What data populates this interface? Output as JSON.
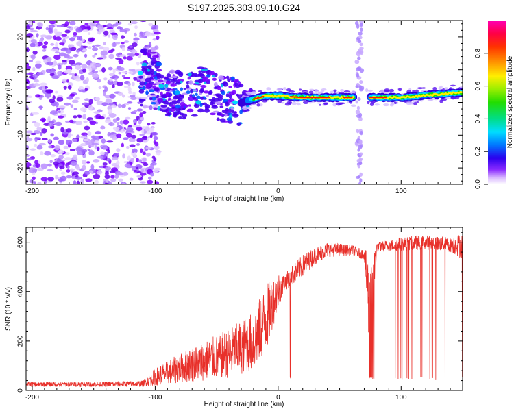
{
  "title": "S197.2025.303.09.10.G24",
  "colors": {
    "snr_line": "#e8302a",
    "colorbar": [
      "#ff00b4",
      "#ff0000",
      "#ff9900",
      "#ffff00",
      "#44dd00",
      "#00dd66",
      "#00ddff",
      "#0066ff",
      "#3300dd",
      "#7a00ff",
      "#ffffff"
    ]
  },
  "chart_data": [
    {
      "type": "heatmap",
      "name": "spectrogram",
      "xlabel": "Height of straight line (km)",
      "ylabel": "Frequency (Hz)",
      "xlim": [
        -205,
        150
      ],
      "ylim": [
        -25,
        25
      ],
      "xticks": [
        -200,
        -100,
        0,
        100
      ],
      "xtick_labels": [
        "-200",
        "-100",
        "0",
        "100"
      ],
      "yticks": [
        -20,
        -10,
        0,
        10,
        20
      ],
      "ytick_labels": [
        "-20",
        "-10",
        "0",
        "10",
        "20"
      ],
      "colorbar": {
        "label": "Normalized spectral amplitude",
        "range": [
          0,
          1
        ],
        "ticks": [
          0.0,
          0.2,
          0.4,
          0.6,
          0.8
        ],
        "tick_labels": [
          "0.0",
          "0.2",
          "0.4",
          "0.6",
          "0.8"
        ]
      },
      "features": {
        "noise_region_x": [
          -205,
          -105
        ],
        "ridge": [
          [
            -110,
            10
          ],
          [
            -100,
            6
          ],
          [
            -90,
            3
          ],
          [
            -75,
            2
          ],
          [
            -60,
            4
          ],
          [
            -45,
            1
          ],
          [
            -30,
            0
          ],
          [
            -20,
            1
          ],
          [
            -10,
            2
          ],
          [
            0,
            2
          ],
          [
            20,
            1.5
          ],
          [
            40,
            1.5
          ],
          [
            60,
            1.5
          ],
          [
            65,
            1.5
          ],
          [
            75,
            1.5
          ],
          [
            100,
            1.5
          ],
          [
            130,
            2.5
          ],
          [
            150,
            3
          ]
        ],
        "vertical_gap_x": [
          62,
          72
        ]
      }
    },
    {
      "type": "line",
      "name": "snr",
      "xlabel": "Height of straight line (km)",
      "ylabel": "SNR (10 * v/v)",
      "xlim": [
        -205,
        150
      ],
      "ylim": [
        0,
        660
      ],
      "xticks": [
        -200,
        -100,
        0,
        100
      ],
      "xtick_labels": [
        "-200",
        "-100",
        "0",
        "100"
      ],
      "yticks": [
        0,
        200,
        400,
        600
      ],
      "ytick_labels": [
        "0",
        "200",
        "400",
        "600"
      ],
      "envelope": {
        "x": [
          -205,
          -150,
          -110,
          -100,
          -80,
          -60,
          -40,
          -20,
          -10,
          0,
          5,
          10,
          20,
          30,
          40,
          60,
          70,
          75,
          80,
          100,
          120,
          140,
          150
        ],
        "low": [
          15,
          15,
          15,
          20,
          30,
          40,
          50,
          80,
          150,
          330,
          400,
          420,
          460,
          510,
          540,
          545,
          530,
          40,
          560,
          565,
          570,
          560,
          530
        ],
        "high": [
          35,
          35,
          40,
          90,
          150,
          200,
          250,
          320,
          430,
          480,
          470,
          500,
          550,
          580,
          600,
          590,
          570,
          560,
          600,
          620,
          630,
          620,
          640
        ]
      }
    }
  ]
}
